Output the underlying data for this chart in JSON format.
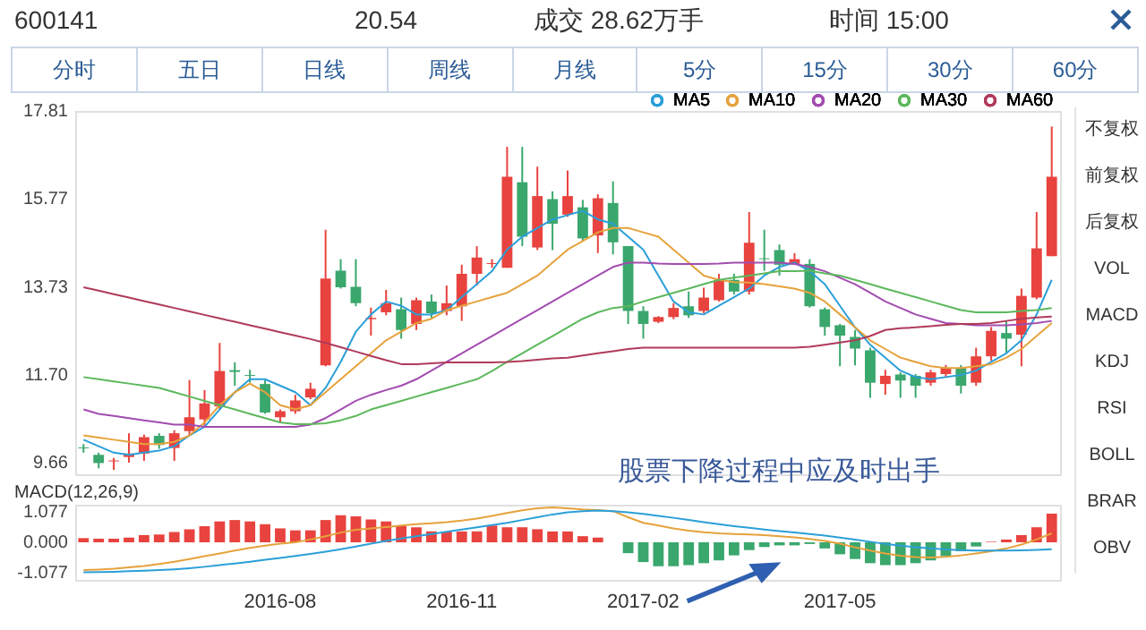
{
  "chart_data": [
    {
      "type": "other",
      "annotations": [
        "600141",
        "20.54",
        "成交 28.62万手",
        "时间 15:00"
      ]
    },
    {
      "type": "other",
      "annotations": [
        "分时",
        "五日",
        "日线",
        "周线",
        "月线",
        "5分",
        "15分",
        "30分",
        "60分"
      ]
    },
    {
      "type": "candlestick",
      "categories": [
        null,
        null,
        null,
        null,
        null,
        null,
        null,
        null,
        null,
        null,
        null,
        null,
        null,
        "2016-08",
        null,
        null,
        null,
        null,
        null,
        null,
        null,
        null,
        null,
        null,
        null,
        "2016-11",
        null,
        null,
        null,
        null,
        null,
        null,
        null,
        null,
        null,
        null,
        null,
        "2017-02",
        null,
        null,
        null,
        null,
        null,
        null,
        null,
        null,
        null,
        null,
        null,
        null,
        "2017-05",
        null,
        null,
        null,
        null,
        null,
        null,
        null,
        null,
        null,
        null,
        null,
        null,
        null,
        null
      ],
      "ohlc": [
        [
          10.02,
          10.1,
          9.9,
          10.0
        ],
        [
          9.85,
          9.9,
          9.54,
          9.66
        ],
        [
          9.7,
          9.78,
          9.5,
          9.72
        ],
        [
          9.8,
          10.35,
          9.67,
          9.88
        ],
        [
          9.88,
          10.32,
          9.71,
          10.26
        ],
        [
          10.29,
          10.35,
          9.99,
          10.08
        ],
        [
          10.01,
          10.42,
          9.71,
          10.35
        ],
        [
          10.4,
          11.58,
          10.29,
          10.72
        ],
        [
          10.67,
          11.35,
          10.49,
          11.04
        ],
        [
          10.97,
          12.44,
          10.9,
          11.79
        ],
        [
          11.81,
          11.99,
          11.45,
          11.77
        ],
        [
          11.7,
          11.82,
          11.52,
          11.68
        ],
        [
          11.49,
          11.58,
          10.8,
          10.83
        ],
        [
          10.72,
          10.9,
          10.59,
          10.86
        ],
        [
          10.86,
          11.24,
          10.8,
          11.11
        ],
        [
          11.18,
          11.52,
          11.14,
          11.38
        ],
        [
          11.92,
          15.06,
          11.9,
          13.93
        ],
        [
          14.11,
          14.38,
          13.7,
          13.73
        ],
        [
          13.74,
          14.38,
          13.29,
          13.36
        ],
        [
          12.99,
          13.26,
          12.61,
          13.02
        ],
        [
          13.15,
          13.67,
          13.08,
          13.36
        ],
        [
          13.22,
          13.49,
          12.54,
          12.74
        ],
        [
          12.88,
          13.49,
          12.74,
          13.43
        ],
        [
          13.4,
          13.56,
          13.02,
          13.13
        ],
        [
          13.18,
          13.77,
          13.08,
          13.36
        ],
        [
          13.29,
          14.25,
          12.95,
          14.04
        ],
        [
          14.04,
          14.68,
          13.77,
          14.42
        ],
        [
          14.27,
          14.38,
          14.18,
          14.29
        ],
        [
          14.18,
          16.98,
          14.18,
          16.29
        ],
        [
          16.16,
          16.98,
          14.68,
          14.9
        ],
        [
          14.65,
          16.52,
          14.59,
          15.84
        ],
        [
          15.77,
          15.95,
          14.59,
          15.2
        ],
        [
          15.41,
          16.43,
          15.36,
          15.84
        ],
        [
          15.58,
          15.75,
          14.79,
          14.86
        ],
        [
          14.93,
          15.88,
          14.52,
          15.79
        ],
        [
          15.68,
          16.18,
          14.49,
          14.77
        ],
        [
          14.68,
          14.68,
          12.88,
          13.18
        ],
        [
          13.18,
          13.29,
          12.54,
          12.88
        ],
        [
          12.93,
          13.06,
          12.9,
          13.04
        ],
        [
          13.04,
          13.36,
          12.99,
          13.25
        ],
        [
          13.29,
          13.63,
          13.02,
          13.08
        ],
        [
          13.18,
          13.72,
          13.13,
          13.49
        ],
        [
          13.43,
          14.04,
          13.4,
          13.9
        ],
        [
          13.9,
          14.04,
          13.56,
          13.63
        ],
        [
          13.63,
          15.47,
          13.56,
          14.76
        ],
        [
          14.4,
          15.06,
          14.11,
          14.38
        ],
        [
          14.59,
          14.72,
          14.0,
          14.25
        ],
        [
          14.27,
          14.52,
          14.25,
          14.38
        ],
        [
          14.27,
          14.38,
          13.26,
          13.29
        ],
        [
          13.22,
          13.26,
          12.61,
          12.81
        ],
        [
          12.85,
          12.88,
          11.9,
          12.61
        ],
        [
          12.58,
          12.74,
          11.92,
          12.31
        ],
        [
          12.27,
          12.33,
          11.17,
          11.52
        ],
        [
          11.49,
          11.82,
          11.24,
          11.68
        ],
        [
          11.71,
          11.76,
          11.17,
          11.57
        ],
        [
          11.68,
          11.72,
          11.17,
          11.45
        ],
        [
          11.52,
          11.82,
          11.45,
          11.76
        ],
        [
          11.72,
          11.93,
          11.65,
          11.86
        ],
        [
          11.86,
          11.93,
          11.27,
          11.45
        ],
        [
          11.52,
          12.33,
          11.45,
          12.13
        ],
        [
          12.13,
          12.81,
          12.03,
          12.72
        ],
        [
          12.67,
          12.95,
          12.2,
          12.54
        ],
        [
          12.63,
          13.7,
          11.9,
          13.53
        ],
        [
          13.49,
          15.47,
          13.45,
          14.63
        ],
        [
          14.45,
          17.45,
          14.45,
          16.29
        ]
      ],
      "colors": [
        "#3aa76d",
        "#3aa76d",
        "#e8433f",
        "#e8433f",
        "#e8433f",
        "#3aa76d",
        "#e8433f",
        "#e8433f",
        "#e8433f",
        "#e8433f",
        "#3aa76d",
        "#3aa76d",
        "#3aa76d",
        "#e8433f",
        "#e8433f",
        "#e8433f",
        "#e8433f",
        "#3aa76d",
        "#3aa76d",
        "#e8433f",
        "#e8433f",
        "#3aa76d",
        "#e8433f",
        "#3aa76d",
        "#e8433f",
        "#e8433f",
        "#e8433f",
        "#e8433f",
        "#e8433f",
        "#3aa76d",
        "#e8433f",
        "#3aa76d",
        "#e8433f",
        "#3aa76d",
        "#e8433f",
        "#3aa76d",
        "#3aa76d",
        "#3aa76d",
        "#e8433f",
        "#e8433f",
        "#3aa76d",
        "#e8433f",
        "#e8433f",
        "#3aa76d",
        "#e8433f",
        "#3aa76d",
        "#3aa76d",
        "#e8433f",
        "#3aa76d",
        "#3aa76d",
        "#3aa76d",
        "#3aa76d",
        "#3aa76d",
        "#e8433f",
        "#3aa76d",
        "#3aa76d",
        "#e8433f",
        "#e8433f",
        "#3aa76d",
        "#e8433f",
        "#e8433f",
        "#3aa76d",
        "#e8433f",
        "#e8433f",
        "#e8433f"
      ],
      "series": [
        {
          "type": "line",
          "name": "MA5",
          "color": "#2b9fd8",
          "values": [
            10.2,
            10.05,
            9.9,
            9.85,
            9.9,
            9.95,
            10.05,
            10.3,
            10.5,
            10.9,
            11.3,
            11.6,
            11.6,
            11.45,
            11.3,
            11.0,
            11.4,
            12.0,
            12.7,
            13.1,
            13.4,
            13.3,
            13.1,
            13.1,
            13.2,
            13.5,
            13.8,
            14.1,
            14.6,
            14.9,
            15.1,
            15.3,
            15.4,
            15.5,
            15.3,
            15.2,
            14.9,
            14.6,
            14.0,
            13.4,
            13.15,
            13.1,
            13.3,
            13.5,
            13.7,
            14.0,
            14.2,
            14.3,
            14.1,
            13.8,
            13.3,
            12.8,
            12.4,
            12.1,
            11.8,
            11.65,
            11.6,
            11.65,
            11.7,
            11.8,
            12.0,
            12.2,
            12.5,
            13.1,
            13.9
          ]
        },
        {
          "type": "line",
          "name": "MA10",
          "color": "#e6a23c",
          "values": [
            10.3,
            10.25,
            10.2,
            10.15,
            10.1,
            10.1,
            10.15,
            10.3,
            10.6,
            11.0,
            11.3,
            11.5,
            11.3,
            11.0,
            10.9,
            11.0,
            11.3,
            11.6,
            11.9,
            12.2,
            12.5,
            12.7,
            12.9,
            13.0,
            13.2,
            13.3,
            13.4,
            13.5,
            13.6,
            13.8,
            14.0,
            14.3,
            14.6,
            14.8,
            15.0,
            15.1,
            15.1,
            15.0,
            14.9,
            14.6,
            14.3,
            14.0,
            13.9,
            13.85,
            13.84,
            13.8,
            13.75,
            13.7,
            13.6,
            13.4,
            13.1,
            12.8,
            12.5,
            12.3,
            12.1,
            12.0,
            11.9,
            11.86,
            11.86,
            11.9,
            11.95,
            12.1,
            12.3,
            12.6,
            12.9
          ]
        },
        {
          "type": "line",
          "name": "MA20",
          "color": "#a24cb0",
          "values": [
            10.9,
            10.8,
            10.75,
            10.7,
            10.65,
            10.6,
            10.55,
            10.55,
            10.5,
            10.5,
            10.5,
            10.5,
            10.5,
            10.5,
            10.5,
            10.55,
            10.7,
            10.9,
            11.1,
            11.24,
            11.35,
            11.45,
            11.6,
            11.8,
            12.0,
            12.2,
            12.4,
            12.6,
            12.8,
            13.0,
            13.2,
            13.4,
            13.6,
            13.8,
            14.0,
            14.2,
            14.3,
            14.3,
            14.28,
            14.27,
            14.27,
            14.27,
            14.28,
            14.3,
            14.3,
            14.3,
            14.3,
            14.27,
            14.2,
            14.1,
            13.95,
            13.8,
            13.6,
            13.4,
            13.25,
            13.1,
            13.0,
            12.9,
            12.88,
            12.85,
            12.85,
            12.85,
            12.87,
            12.9,
            12.95
          ]
        },
        {
          "type": "line",
          "name": "MA30",
          "color": "#5cb85c",
          "values": [
            11.65,
            11.6,
            11.55,
            11.5,
            11.45,
            11.4,
            11.3,
            11.2,
            11.1,
            11.0,
            10.9,
            10.8,
            10.7,
            10.6,
            10.56,
            10.56,
            10.58,
            10.65,
            10.75,
            10.9,
            11.0,
            11.1,
            11.2,
            11.3,
            11.4,
            11.5,
            11.6,
            11.79,
            12.0,
            12.2,
            12.4,
            12.6,
            12.8,
            13.0,
            13.15,
            13.25,
            13.29,
            13.4,
            13.5,
            13.6,
            13.7,
            13.8,
            13.9,
            13.95,
            14.0,
            14.05,
            14.1,
            14.1,
            14.11,
            14.05,
            14.0,
            13.9,
            13.8,
            13.7,
            13.6,
            13.5,
            13.4,
            13.3,
            13.2,
            13.15,
            13.15,
            13.15,
            13.18,
            13.2,
            13.25
          ]
        },
        {
          "type": "line",
          "name": "MA60",
          "color": "#b03a5b",
          "values": [
            13.73,
            13.65,
            13.57,
            13.49,
            13.41,
            13.33,
            13.25,
            13.17,
            13.09,
            13.01,
            12.93,
            12.85,
            12.77,
            12.69,
            12.61,
            12.53,
            12.44,
            12.34,
            12.24,
            12.14,
            12.04,
            11.95,
            11.95,
            11.97,
            11.99,
            11.99,
            11.99,
            11.99,
            12.0,
            12.02,
            12.05,
            12.08,
            12.1,
            12.15,
            12.2,
            12.25,
            12.3,
            12.33,
            12.33,
            12.33,
            12.33,
            12.33,
            12.33,
            12.33,
            12.33,
            12.33,
            12.33,
            12.33,
            12.35,
            12.4,
            12.45,
            12.5,
            12.6,
            12.74,
            12.78,
            12.8,
            12.83,
            12.86,
            12.88,
            12.88,
            12.9,
            12.95,
            13.0,
            13.03,
            13.05
          ]
        }
      ],
      "ylim": [
        9.4,
        17.81
      ],
      "yticks": [
        17.81,
        15.77,
        13.73,
        {
          "value": 11.7,
          "label": "11.70"
        },
        9.66
      ],
      "legend": "top right",
      "tick_labels": "y"
    },
    {
      "type": "bar",
      "title": "MACD(12,26,9)",
      "annotations": [
        "股票下降过程中应及时出手"
      ],
      "categories": [
        null,
        null,
        null,
        null,
        null,
        null,
        null,
        null,
        null,
        null,
        null,
        null,
        null,
        "2016-08",
        null,
        null,
        null,
        null,
        null,
        null,
        null,
        null,
        null,
        null,
        null,
        "2016-11",
        null,
        null,
        null,
        null,
        null,
        null,
        null,
        null,
        null,
        null,
        null,
        "2017-02",
        null,
        null,
        null,
        null,
        null,
        null,
        null,
        null,
        null,
        null,
        null,
        null,
        "2017-05",
        null,
        null,
        null,
        null,
        null,
        null,
        null,
        null,
        null,
        null,
        null,
        null,
        null,
        null
      ],
      "series": [
        {
          "type": "bar",
          "values": [
            0.15,
            0.13,
            0.13,
            0.17,
            0.26,
            0.28,
            0.37,
            0.47,
            0.58,
            0.75,
            0.8,
            0.75,
            0.65,
            0.5,
            0.43,
            0.43,
            0.8,
            0.97,
            0.93,
            0.82,
            0.75,
            0.6,
            0.54,
            0.39,
            0.39,
            0.39,
            0.39,
            0.6,
            0.54,
            0.54,
            0.47,
            0.39,
            0.39,
            0.22,
            0.17,
            0,
            -0.39,
            -0.71,
            -0.86,
            -0.86,
            -0.82,
            -0.75,
            -0.65,
            -0.47,
            -0.28,
            -0.17,
            -0.11,
            -0.11,
            -0.06,
            -0.22,
            -0.43,
            -0.6,
            -0.75,
            -0.82,
            -0.82,
            -0.75,
            -0.65,
            -0.5,
            -0.32,
            -0.15,
            0.02,
            0.1,
            0.26,
            0.54,
            1.03
          ],
          "colors": [
            "#e8433f",
            "#e8433f",
            "#e8433f",
            "#e8433f",
            "#e8433f",
            "#e8433f",
            "#e8433f",
            "#e8433f",
            "#e8433f",
            "#e8433f",
            "#e8433f",
            "#e8433f",
            "#e8433f",
            "#e8433f",
            "#e8433f",
            "#e8433f",
            "#e8433f",
            "#e8433f",
            "#e8433f",
            "#e8433f",
            "#e8433f",
            "#e8433f",
            "#e8433f",
            "#e8433f",
            "#e8433f",
            "#e8433f",
            "#e8433f",
            "#e8433f",
            "#e8433f",
            "#e8433f",
            "#e8433f",
            "#e8433f",
            "#e8433f",
            "#e8433f",
            "#e8433f",
            "#e8433f",
            "#3aa76d",
            "#3aa76d",
            "#3aa76d",
            "#3aa76d",
            "#3aa76d",
            "#3aa76d",
            "#3aa76d",
            "#3aa76d",
            "#3aa76d",
            "#3aa76d",
            "#3aa76d",
            "#3aa76d",
            "#3aa76d",
            "#3aa76d",
            "#3aa76d",
            "#3aa76d",
            "#3aa76d",
            "#3aa76d",
            "#3aa76d",
            "#3aa76d",
            "#3aa76d",
            "#3aa76d",
            "#3aa76d",
            "#3aa76d",
            "#e8433f",
            "#e8433f",
            "#e8433f",
            "#e8433f",
            "#e8433f"
          ]
        },
        {
          "type": "line",
          "color": "#e6a23c",
          "values": [
            -1.0,
            -0.98,
            -0.95,
            -0.9,
            -0.85,
            -0.78,
            -0.7,
            -0.6,
            -0.5,
            -0.4,
            -0.3,
            -0.2,
            -0.12,
            -0.05,
            0.0,
            0.1,
            0.22,
            0.35,
            0.45,
            0.5,
            0.55,
            0.6,
            0.65,
            0.68,
            0.72,
            0.78,
            0.85,
            0.95,
            1.05,
            1.15,
            1.22,
            1.25,
            1.22,
            1.18,
            1.16,
            1.12,
            0.9,
            0.7,
            0.6,
            0.5,
            0.42,
            0.36,
            0.32,
            0.3,
            0.28,
            0.26,
            0.22,
            0.18,
            0.12,
            0.05,
            -0.05,
            -0.18,
            -0.3,
            -0.4,
            -0.48,
            -0.53,
            -0.55,
            -0.52,
            -0.47,
            -0.4,
            -0.32,
            -0.22,
            -0.08,
            0.1,
            0.32
          ]
        },
        {
          "type": "line",
          "color": "#2b9fd8",
          "values": [
            -1.08,
            -1.07,
            -1.06,
            -1.04,
            -1.02,
            -1.0,
            -0.97,
            -0.93,
            -0.88,
            -0.82,
            -0.76,
            -0.7,
            -0.63,
            -0.56,
            -0.49,
            -0.42,
            -0.34,
            -0.25,
            -0.15,
            -0.05,
            0.05,
            0.14,
            0.22,
            0.3,
            0.38,
            0.46,
            0.54,
            0.62,
            0.7,
            0.8,
            0.9,
            1.0,
            1.08,
            1.12,
            1.14,
            1.12,
            1.08,
            1.02,
            0.95,
            0.88,
            0.8,
            0.72,
            0.65,
            0.58,
            0.52,
            0.46,
            0.4,
            0.35,
            0.3,
            0.24,
            0.17,
            0.1,
            0.02,
            -0.06,
            -0.12,
            -0.18,
            -0.22,
            -0.26,
            -0.28,
            -0.3,
            -0.3,
            -0.3,
            -0.29,
            -0.27,
            -0.25
          ]
        }
      ],
      "ylim": [
        -1.35,
        1.35
      ],
      "yticks": [
        1.077,
        {
          "value": 0,
          "label": "0.000"
        },
        -1.077
      ]
    },
    {
      "type": "other",
      "annotations": [
        "不复权",
        "前复权",
        "后复权",
        "VOL",
        "MACD",
        "KDJ",
        "RSI",
        "BOLL",
        "BRAR",
        "OBV"
      ]
    }
  ]
}
